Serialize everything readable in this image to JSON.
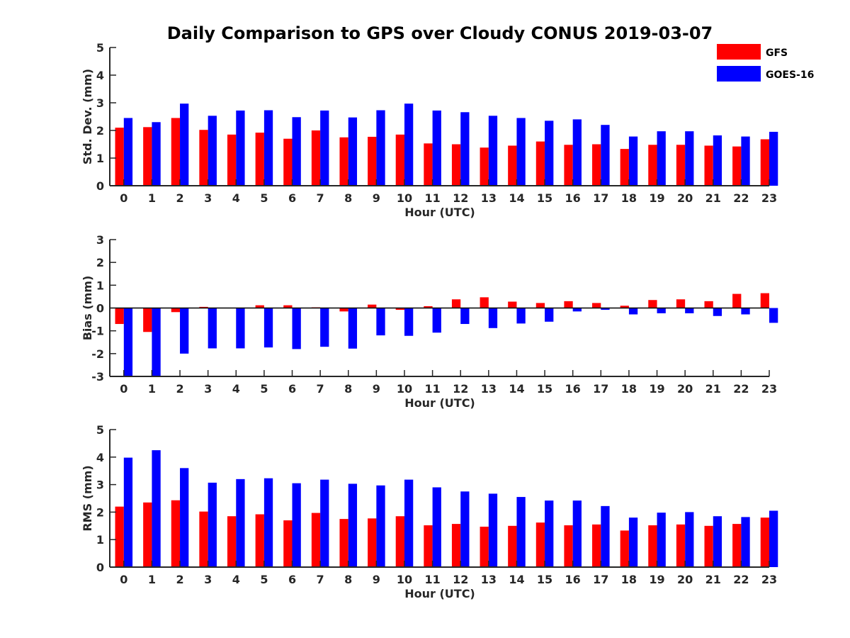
{
  "title": "Daily Comparison to GPS over Cloudy CONUS 2019-03-07",
  "legend": {
    "placement": "top-right",
    "entries": [
      {
        "label": "GFS",
        "color": "#ff0000"
      },
      {
        "label": "GOES-16",
        "color": "#0000ff"
      }
    ]
  },
  "chart_data": [
    {
      "type": "bar",
      "xlabel": "Hour (UTC)",
      "ylabel": "Std. Dev. (mm)",
      "ylim": [
        0,
        5
      ],
      "yticks": [
        0,
        1,
        2,
        3,
        4,
        5
      ],
      "categories": [
        "0",
        "1",
        "2",
        "3",
        "4",
        "5",
        "6",
        "7",
        "8",
        "9",
        "10",
        "11",
        "12",
        "13",
        "14",
        "15",
        "16",
        "17",
        "18",
        "19",
        "20",
        "21",
        "22",
        "23"
      ],
      "series": [
        {
          "name": "GFS",
          "color": "#ff0000",
          "values": [
            2.1,
            2.12,
            2.45,
            2.02,
            1.85,
            1.92,
            1.7,
            2.0,
            1.75,
            1.77,
            1.85,
            1.53,
            1.5,
            1.38,
            1.45,
            1.6,
            1.48,
            1.5,
            1.33,
            1.48,
            1.48,
            1.45,
            1.42,
            1.68
          ]
        },
        {
          "name": "GOES-16",
          "color": "#0000ff",
          "values": [
            2.45,
            2.3,
            2.97,
            2.53,
            2.72,
            2.73,
            2.48,
            2.72,
            2.47,
            2.73,
            2.97,
            2.72,
            2.66,
            2.53,
            2.45,
            2.35,
            2.4,
            2.2,
            1.78,
            1.97,
            1.97,
            1.82,
            1.78,
            1.95
          ]
        }
      ]
    },
    {
      "type": "bar",
      "xlabel": "Hour (UTC)",
      "ylabel": "Bias (mm)",
      "ylim": [
        -3,
        3
      ],
      "yticks": [
        -3,
        -2,
        -1,
        0,
        1,
        2,
        3
      ],
      "categories": [
        "0",
        "1",
        "2",
        "3",
        "4",
        "5",
        "6",
        "7",
        "8",
        "9",
        "10",
        "11",
        "12",
        "13",
        "14",
        "15",
        "16",
        "17",
        "18",
        "19",
        "20",
        "21",
        "22",
        "23"
      ],
      "series": [
        {
          "name": "GFS",
          "color": "#ff0000",
          "values": [
            -0.7,
            -1.05,
            -0.18,
            0.05,
            0.0,
            0.12,
            0.12,
            0.03,
            -0.15,
            0.15,
            -0.08,
            0.08,
            0.38,
            0.47,
            0.28,
            0.22,
            0.3,
            0.22,
            0.1,
            0.35,
            0.38,
            0.3,
            0.62,
            0.65
          ]
        },
        {
          "name": "GOES-16",
          "color": "#0000ff",
          "values": [
            -3.0,
            -3.0,
            -2.0,
            -1.77,
            -1.77,
            -1.73,
            -1.8,
            -1.7,
            -1.78,
            -1.2,
            -1.22,
            -1.08,
            -0.7,
            -0.88,
            -0.68,
            -0.6,
            -0.15,
            -0.08,
            -0.28,
            -0.23,
            -0.23,
            -0.35,
            -0.28,
            -0.65
          ]
        }
      ]
    },
    {
      "type": "bar",
      "xlabel": "Hour (UTC)",
      "ylabel": "RMS (mm)",
      "ylim": [
        0,
        5
      ],
      "yticks": [
        0,
        1,
        2,
        3,
        4,
        5
      ],
      "categories": [
        "0",
        "1",
        "2",
        "3",
        "4",
        "5",
        "6",
        "7",
        "8",
        "9",
        "10",
        "11",
        "12",
        "13",
        "14",
        "15",
        "16",
        "17",
        "18",
        "19",
        "20",
        "21",
        "22",
        "23"
      ],
      "series": [
        {
          "name": "GFS",
          "color": "#ff0000",
          "values": [
            2.2,
            2.35,
            2.43,
            2.02,
            1.85,
            1.92,
            1.7,
            1.97,
            1.75,
            1.77,
            1.85,
            1.52,
            1.57,
            1.47,
            1.5,
            1.62,
            1.52,
            1.55,
            1.33,
            1.52,
            1.55,
            1.5,
            1.57,
            1.8
          ]
        },
        {
          "name": "GOES-16",
          "color": "#0000ff",
          "values": [
            3.98,
            4.25,
            3.6,
            3.07,
            3.2,
            3.23,
            3.05,
            3.18,
            3.03,
            2.97,
            3.18,
            2.9,
            2.75,
            2.67,
            2.55,
            2.42,
            2.42,
            2.22,
            1.8,
            1.98,
            2.0,
            1.85,
            1.82,
            2.05
          ]
        }
      ]
    }
  ]
}
